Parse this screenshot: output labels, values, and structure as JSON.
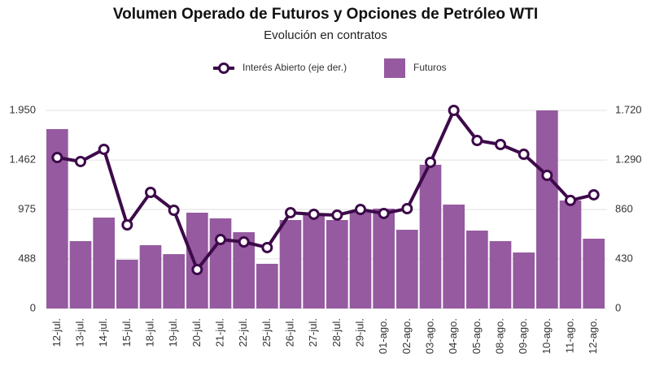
{
  "chart_data": {
    "type": "bar_line",
    "title": "Volumen Operado de Futuros y Opciones de Petróleo WTI",
    "subtitle": "Evolución en contratos",
    "categories": [
      "12-jul.",
      "13-jul.",
      "14-jul.",
      "15-jul.",
      "18-jul.",
      "19-jul.",
      "20-jul.",
      "21-jul.",
      "22-jul.",
      "25-jul.",
      "26-jul.",
      "27-jul.",
      "28-jul.",
      "29-jul.",
      "01-ago.",
      "02-ago.",
      "03-ago.",
      "04-ago.",
      "05-ago.",
      "08-ago.",
      "09-ago.",
      "10-ago.",
      "11-ago.",
      "12-ago."
    ],
    "series": [
      {
        "name": "Interés Abierto (eje der.)",
        "color": "#3d0a4a",
        "axis": "y2",
        "kind": "line",
        "values": [
          1311,
          1276,
          1382,
          726,
          1008,
          853,
          338,
          599,
          578,
          529,
          832,
          818,
          811,
          860,
          825,
          867,
          1269,
          1720,
          1459,
          1424,
          1339,
          1156,
          938,
          987
        ]
      },
      {
        "name": "Futuros",
        "color": "#955a9f",
        "kind": "bar",
        "values": [
          1766,
          663,
          895,
          480,
          623,
          535,
          943,
          887,
          751,
          440,
          871,
          927,
          871,
          951,
          983,
          775,
          1415,
          1023,
          767,
          663,
          551,
          1950,
          1063,
          687
        ]
      }
    ],
    "ylim": [
      0,
      1950
    ],
    "yticks": [
      0,
      488,
      975,
      {
        "value": 1462,
        "label": "1.462"
      },
      {
        "value": 1950,
        "label": "1.950"
      }
    ],
    "y2lim": [
      0,
      1720
    ],
    "y2ticks": [
      0,
      430,
      860,
      {
        "value": 1290,
        "label": "1.290"
      },
      {
        "value": 1720,
        "label": "1.720"
      }
    ],
    "grid": true
  }
}
